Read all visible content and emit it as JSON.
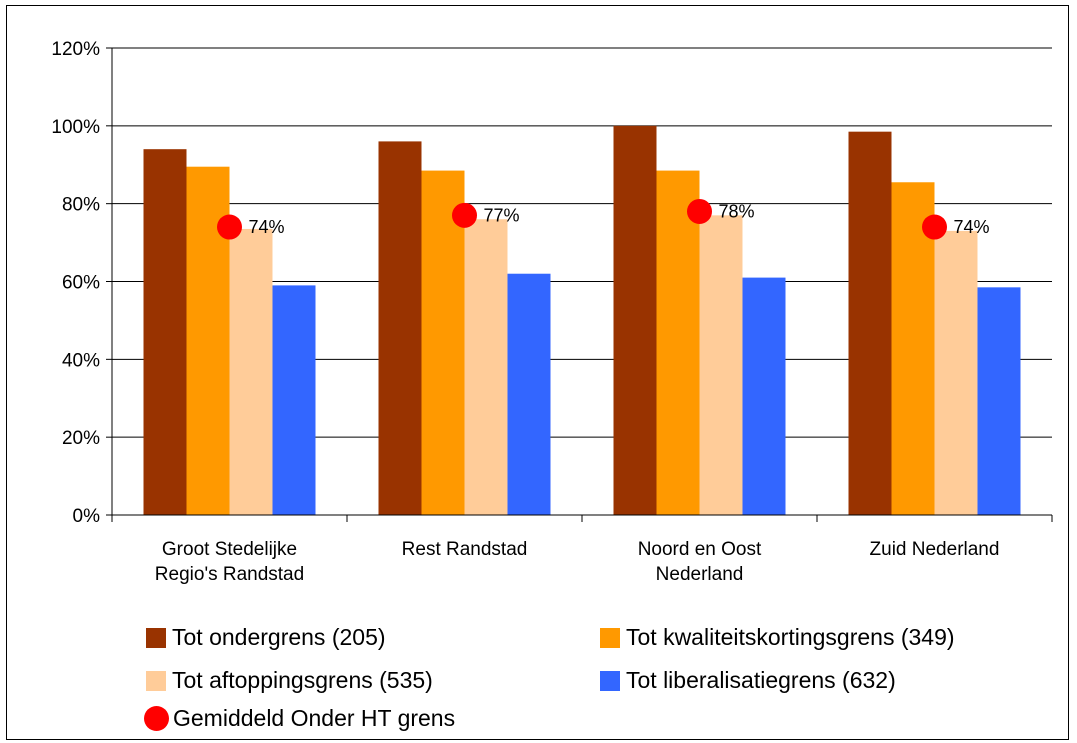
{
  "chart_data": {
    "type": "bar",
    "categories": [
      [
        "Groot Stedelijke",
        "Regio's Randstad"
      ],
      [
        "Rest Randstad"
      ],
      [
        "Noord en Oost",
        "Nederland"
      ],
      [
        "Zuid Nederland"
      ]
    ],
    "series": [
      {
        "name": "Tot ondergrens (205)",
        "values": [
          94,
          96,
          100,
          98.5
        ],
        "color": "#993300"
      },
      {
        "name": "Tot kwaliteitskortingsgrens (349)",
        "values": [
          89.5,
          88.5,
          88.5,
          85.5
        ],
        "color": "#FF9900"
      },
      {
        "name": "Tot aftoppingsgrens (535)",
        "values": [
          73.5,
          76,
          77,
          73
        ],
        "color": "#FFCC99"
      },
      {
        "name": "Tot liberalisatiegrens (632)",
        "values": [
          59,
          62,
          61,
          58.5
        ],
        "color": "#3366FF"
      }
    ],
    "markers": {
      "name": "Gemiddeld Onder HT grens",
      "values": [
        74,
        77,
        78,
        74
      ],
      "labels": [
        "74%",
        "77%",
        "78%",
        "74%"
      ],
      "color": "#FF0000"
    },
    "y_ticks": [
      "0%",
      "20%",
      "40%",
      "60%",
      "80%",
      "100%",
      "120%"
    ],
    "ylim": [
      0,
      120
    ],
    "grid": true,
    "legend_position": "bottom"
  }
}
